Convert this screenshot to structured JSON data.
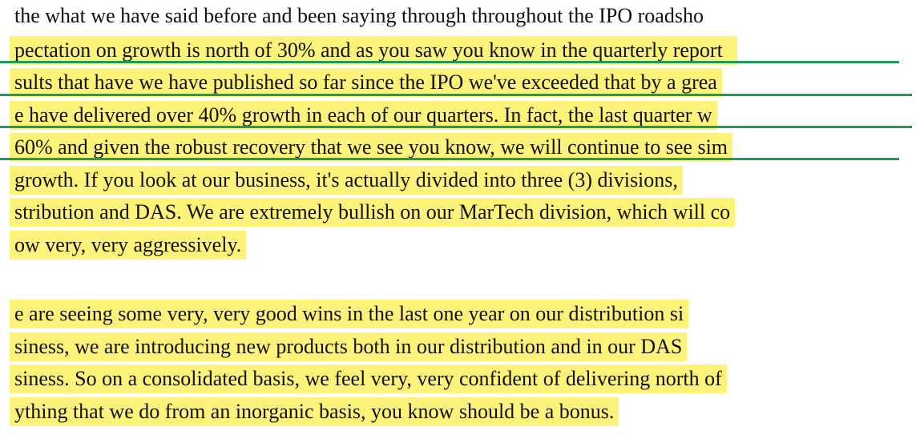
{
  "first_line": "the what we have said before and been saying through throughout the IPO roadsho",
  "paragraphs": [
    [
      "pectation on growth is north of 30% and as you saw you know in the quarterly report  ",
      "sults that have we have published so far since the IPO we've exceeded that by a grea",
      "e have delivered over 40% growth in each of our quarters. In fact, the last quarter w",
      "60% and given the robust recovery that we see you know, we will continue to see sim",
      "growth. If you look at our business, it's actually divided into three (3) divisions,",
      "stribution and DAS. We are extremely bullish on our MarTech division, which will co",
      "ow very, very aggressively."
    ],
    [
      "e are seeing some very, very good wins in the last one year on our distribution si",
      "siness, we are introducing new products both in our distribution and in our DAS",
      "siness. So on a consolidated basis, we feel very, very confident of delivering north of",
      "ything that we do from an inorganic basis, you know should be a bonus."
    ]
  ]
}
